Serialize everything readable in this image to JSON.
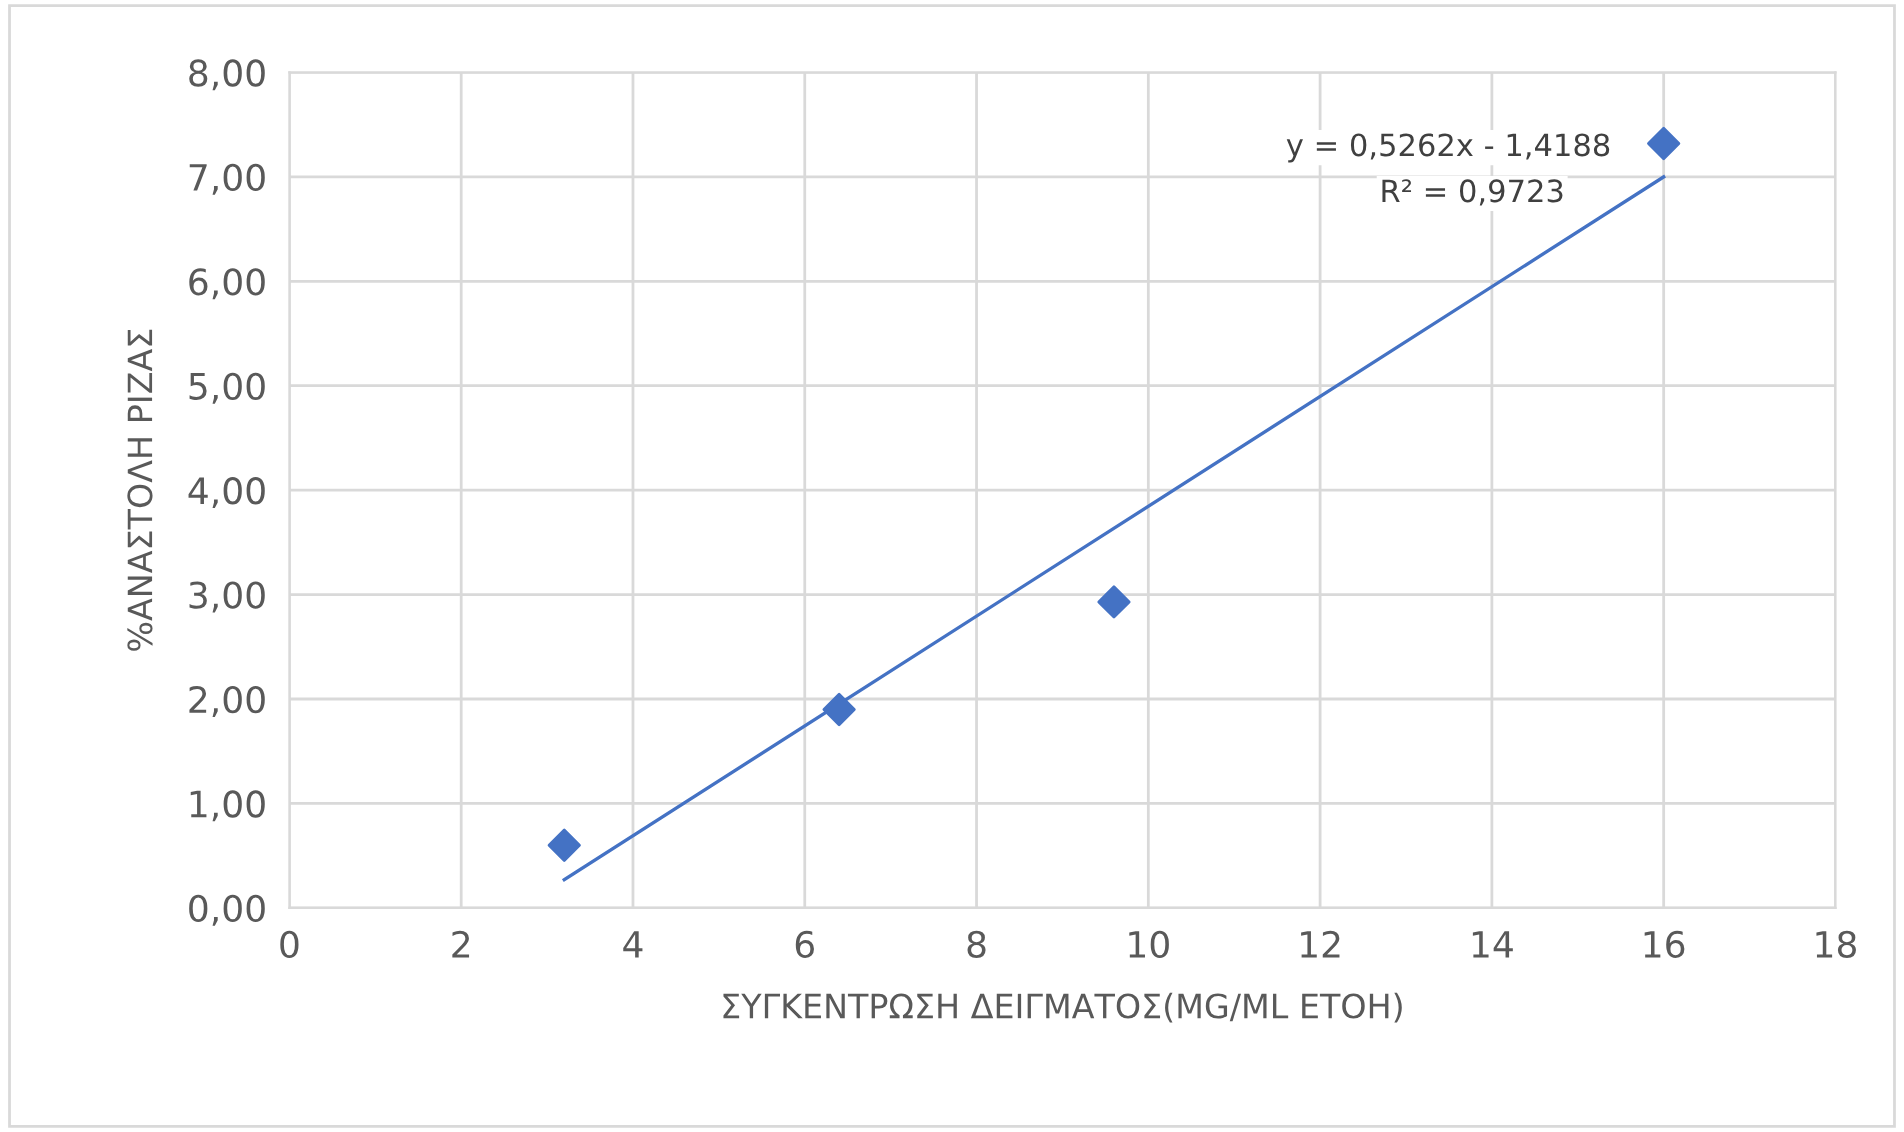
{
  "chart_data": {
    "type": "scatter",
    "xlabel": "ΣΥΓΚΕΝΤΡΩΣΗ ΔΕΙΓΜΑΤΟΣ(MG/ML ETOH)",
    "ylabel": "%ΑΝΑΣΤΟΛΗ ΡΙΖΑΣ",
    "series": [
      {
        "color": "#4472c4",
        "marker": "diamond",
        "x": [
          3.2,
          6.4,
          9.6,
          16
        ],
        "values": [
          0.6,
          1.9,
          2.93,
          7.32
        ]
      },
      {
        "type": "line",
        "color": "#4472c4",
        "marker": "none",
        "line_style": "solid",
        "x": [
          3.2,
          16
        ],
        "values": [
          0.27,
          7.0
        ]
      }
    ],
    "annotations": [
      "y = 0,5262x - 1,4188",
      "R² = 0,9723"
    ],
    "xlim": [
      0,
      18
    ],
    "xticks": [
      0,
      2,
      4,
      6,
      8,
      10,
      12,
      14,
      16,
      18
    ],
    "ylim": [
      0,
      8
    ],
    "yticks": [
      {
        "value": 0,
        "label": "0,00"
      },
      {
        "value": 1,
        "label": "1,00"
      },
      {
        "value": 2,
        "label": "2,00"
      },
      {
        "value": 3,
        "label": "3,00"
      },
      {
        "value": 4,
        "label": "4,00"
      },
      {
        "value": 5,
        "label": "5,00"
      },
      {
        "value": 6,
        "label": "6,00"
      },
      {
        "value": 7,
        "label": "7,00"
      },
      {
        "value": 8,
        "label": "8,00"
      }
    ],
    "grid": true,
    "legend": false
  }
}
